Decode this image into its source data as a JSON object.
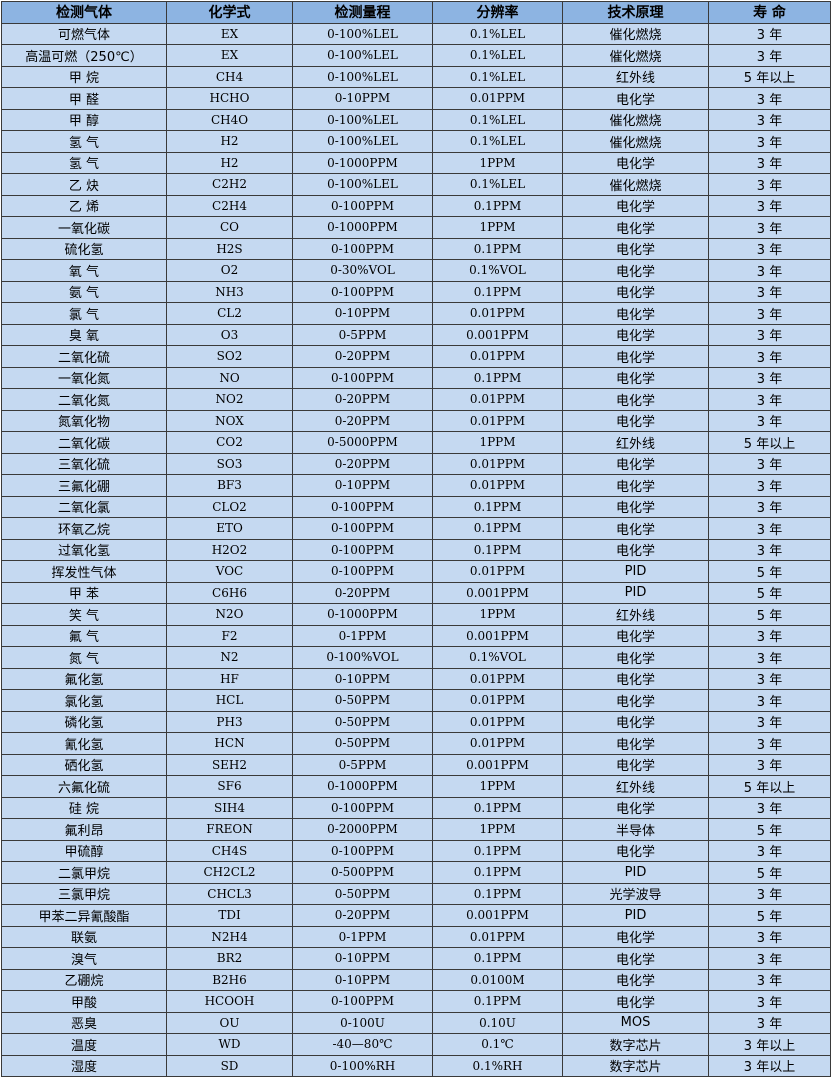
{
  "colors": {
    "header_bg": "#8db4e2",
    "row_bg": "#c5d9f1",
    "border": "#3a3a3a"
  },
  "table": {
    "headers": [
      "检测气体",
      "化学式",
      "检测量程",
      "分辨率",
      "技术原理",
      "寿 命"
    ],
    "rows": [
      [
        "可燃气体",
        "EX",
        "0-100%LEL",
        "0.1%LEL",
        "催化燃烧",
        "3 年"
      ],
      [
        "高温可燃（250℃）",
        "EX",
        "0-100%LEL",
        "0.1%LEL",
        "催化燃烧",
        "3 年"
      ],
      [
        "甲 烷",
        "CH4",
        "0-100%LEL",
        "0.1%LEL",
        "红外线",
        "5 年以上"
      ],
      [
        "甲 醛",
        "HCHO",
        "0-10PPM",
        "0.01PPM",
        "电化学",
        "3 年"
      ],
      [
        "甲 醇",
        "CH4O",
        "0-100%LEL",
        "0.1%LEL",
        "催化燃烧",
        "3 年"
      ],
      [
        "氢 气",
        "H2",
        "0-100%LEL",
        "0.1%LEL",
        "催化燃烧",
        "3 年"
      ],
      [
        "氢 气",
        "H2",
        "0-1000PPM",
        "1PPM",
        "电化学",
        "3 年"
      ],
      [
        "乙 炔",
        "C2H2",
        "0-100%LEL",
        "0.1%LEL",
        "催化燃烧",
        "3 年"
      ],
      [
        "乙 烯",
        "C2H4",
        "0-100PPM",
        "0.1PPM",
        "电化学",
        "3 年"
      ],
      [
        "一氧化碳",
        "CO",
        "0-1000PPM",
        "1PPM",
        "电化学",
        "3 年"
      ],
      [
        "硫化氢",
        "H2S",
        "0-100PPM",
        "0.1PPM",
        "电化学",
        "3 年"
      ],
      [
        "氧 气",
        "O2",
        "0-30%VOL",
        "0.1%VOL",
        "电化学",
        "3 年"
      ],
      [
        "氨 气",
        "NH3",
        "0-100PPM",
        "0.1PPM",
        "电化学",
        "3 年"
      ],
      [
        "氯 气",
        "CL2",
        "0-10PPM",
        "0.01PPM",
        "电化学",
        "3 年"
      ],
      [
        "臭 氧",
        "O3",
        "0-5PPM",
        "0.001PPM",
        "电化学",
        "3 年"
      ],
      [
        "二氧化硫",
        "SO2",
        "0-20PPM",
        "0.01PPM",
        "电化学",
        "3 年"
      ],
      [
        "一氧化氮",
        "NO",
        "0-100PPM",
        "0.1PPM",
        "电化学",
        "3 年"
      ],
      [
        "二氧化氮",
        "NO2",
        "0-20PPM",
        "0.01PPM",
        "电化学",
        "3 年"
      ],
      [
        "氮氧化物",
        "NOX",
        "0-20PPM",
        "0.01PPM",
        "电化学",
        "3 年"
      ],
      [
        "二氧化碳",
        "CO2",
        "0-5000PPM",
        "1PPM",
        "红外线",
        "5 年以上"
      ],
      [
        "三氧化硫",
        "SO3",
        "0-20PPM",
        "0.01PPM",
        "电化学",
        "3 年"
      ],
      [
        "三氟化硼",
        "BF3",
        "0-10PPM",
        "0.01PPM",
        "电化学",
        "3 年"
      ],
      [
        "二氧化氯",
        "CLO2",
        "0-100PPM",
        "0.1PPM",
        "电化学",
        "3 年"
      ],
      [
        "环氧乙烷",
        "ETO",
        "0-100PPM",
        "0.1PPM",
        "电化学",
        "3 年"
      ],
      [
        "过氧化氢",
        "H2O2",
        "0-100PPM",
        "0.1PPM",
        "电化学",
        "3 年"
      ],
      [
        "挥发性气体",
        "VOC",
        "0-100PPM",
        "0.01PPM",
        "PID",
        "5 年"
      ],
      [
        "甲 苯",
        "C6H6",
        "0-20PPM",
        "0.001PPM",
        "PID",
        "5 年"
      ],
      [
        "笑 气",
        "N2O",
        "0-1000PPM",
        "1PPM",
        "红外线",
        "5 年"
      ],
      [
        "氟 气",
        "F2",
        "0-1PPM",
        "0.001PPM",
        "电化学",
        "3 年"
      ],
      [
        "氮 气",
        "N2",
        "0-100%VOL",
        "0.1%VOL",
        "电化学",
        "3 年"
      ],
      [
        "氟化氢",
        "HF",
        "0-10PPM",
        "0.01PPM",
        "电化学",
        "3 年"
      ],
      [
        "氯化氢",
        "HCL",
        "0-50PPM",
        "0.01PPM",
        "电化学",
        "3 年"
      ],
      [
        "磷化氢",
        "PH3",
        "0-50PPM",
        "0.01PPM",
        "电化学",
        "3 年"
      ],
      [
        "氰化氢",
        "HCN",
        "0-50PPM",
        "0.01PPM",
        "电化学",
        "3 年"
      ],
      [
        "硒化氢",
        "SEH2",
        "0-5PPM",
        "0.001PPM",
        "电化学",
        "3 年"
      ],
      [
        "六氟化硫",
        "SF6",
        "0-1000PPM",
        "1PPM",
        "红外线",
        "5 年以上"
      ],
      [
        "硅 烷",
        "SIH4",
        "0-100PPM",
        "0.1PPM",
        "电化学",
        "3 年"
      ],
      [
        "氟利昂",
        "FREON",
        "0-2000PPM",
        "1PPM",
        "半导体",
        "5 年"
      ],
      [
        "甲硫醇",
        "CH4S",
        "0-100PPM",
        "0.1PPM",
        "电化学",
        "3 年"
      ],
      [
        "二氯甲烷",
        "CH2CL2",
        "0-500PPM",
        "0.1PPM",
        "PID",
        "5 年"
      ],
      [
        "三氯甲烷",
        "CHCL3",
        "0-50PPM",
        "0.1PPM",
        "光学波导",
        "3 年"
      ],
      [
        "甲苯二异氰酸酯",
        "TDI",
        "0-20PPM",
        "0.001PPM",
        "PID",
        "5 年"
      ],
      [
        "联氨",
        "N2H4",
        "0-1PPM",
        "0.01PPM",
        "电化学",
        "3 年"
      ],
      [
        "溴气",
        "BR2",
        "0-10PPM",
        "0.1PPM",
        "电化学",
        "3 年"
      ],
      [
        "乙硼烷",
        "B2H6",
        "0-10PPM",
        "0.0100M",
        "电化学",
        "3 年"
      ],
      [
        "甲酸",
        "HCOOH",
        "0-100PPM",
        "0.1PPM",
        "电化学",
        "3 年"
      ],
      [
        "恶臭",
        "OU",
        "0-100U",
        "0.10U",
        "MOS",
        "3 年"
      ],
      [
        "温度",
        "WD",
        "-40—80℃",
        "0.1℃",
        "数字芯片",
        "3 年以上"
      ],
      [
        "湿度",
        "SD",
        "0-100%RH",
        "0.1%RH",
        "数字芯片",
        "3 年以上"
      ]
    ]
  }
}
